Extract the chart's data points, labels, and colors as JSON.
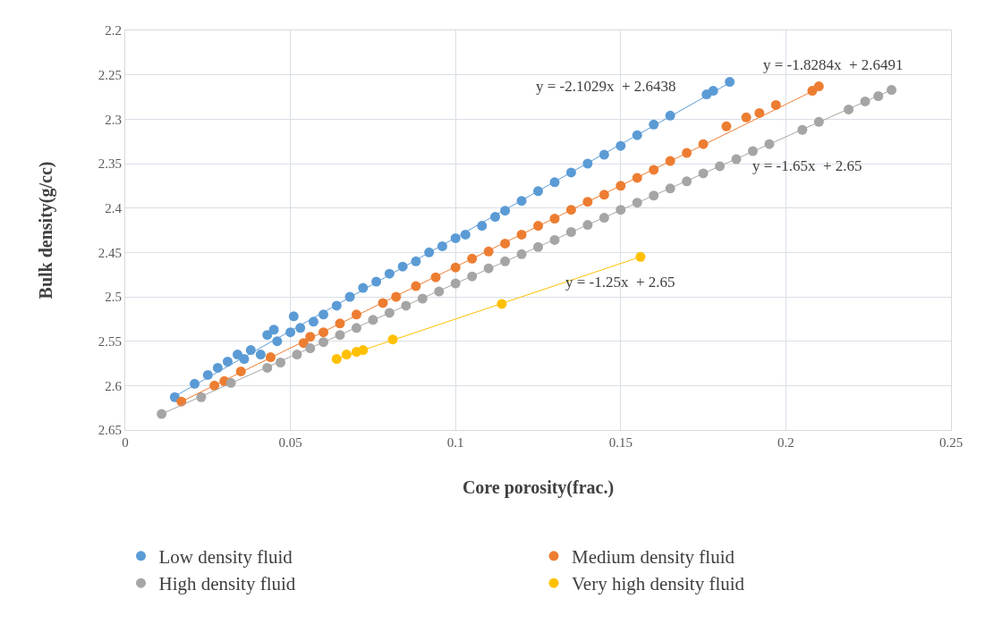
{
  "chart_data": {
    "type": "scatter",
    "xlabel": "Core porosity(frac.)",
    "ylabel": "Bulk density(g/cc)",
    "xlim": [
      0,
      0.25
    ],
    "xticks": [
      0,
      0.05,
      0.1,
      0.15,
      0.2,
      0.25
    ],
    "ylim": [
      2.65,
      2.2
    ],
    "yticks": [
      2.2,
      2.25,
      2.3,
      2.35,
      2.4,
      2.45,
      2.5,
      2.55,
      2.6,
      2.65
    ],
    "grid": true,
    "legend": "bottom",
    "series": [
      {
        "name": "Low density fluid",
        "marker": "circle",
        "color": "#5b9bd5",
        "x": [
          0.015,
          0.021,
          0.025,
          0.028,
          0.031,
          0.034,
          0.036,
          0.038,
          0.041,
          0.043,
          0.045,
          0.046,
          0.05,
          0.051,
          0.053,
          0.057,
          0.06,
          0.064,
          0.068,
          0.072,
          0.076,
          0.08,
          0.084,
          0.088,
          0.092,
          0.096,
          0.1,
          0.103,
          0.108,
          0.112,
          0.115,
          0.12,
          0.125,
          0.13,
          0.135,
          0.14,
          0.145,
          0.15,
          0.155,
          0.16,
          0.165,
          0.176,
          0.178,
          0.183
        ],
        "values": [
          2.613,
          2.598,
          2.588,
          2.58,
          2.573,
          2.565,
          2.57,
          2.56,
          2.565,
          2.543,
          2.537,
          2.55,
          2.54,
          2.522,
          2.535,
          2.528,
          2.52,
          2.51,
          2.5,
          2.49,
          2.483,
          2.474,
          2.466,
          2.46,
          2.45,
          2.443,
          2.434,
          2.43,
          2.42,
          2.41,
          2.403,
          2.392,
          2.381,
          2.371,
          2.36,
          2.35,
          2.34,
          2.33,
          2.318,
          2.306,
          2.296,
          2.272,
          2.268,
          2.258
        ]
      },
      {
        "name": "Medium density fluid",
        "marker": "circle",
        "color": "#ed7d31",
        "x": [
          0.017,
          0.027,
          0.03,
          0.035,
          0.044,
          0.054,
          0.056,
          0.06,
          0.065,
          0.07,
          0.078,
          0.082,
          0.088,
          0.094,
          0.1,
          0.105,
          0.11,
          0.115,
          0.12,
          0.125,
          0.13,
          0.135,
          0.14,
          0.145,
          0.15,
          0.155,
          0.16,
          0.165,
          0.17,
          0.175,
          0.182,
          0.188,
          0.192,
          0.197,
          0.208,
          0.21
        ],
        "values": [
          2.618,
          2.6,
          2.595,
          2.584,
          2.568,
          2.552,
          2.545,
          2.54,
          2.53,
          2.52,
          2.507,
          2.5,
          2.488,
          2.478,
          2.467,
          2.457,
          2.449,
          2.44,
          2.43,
          2.42,
          2.412,
          2.402,
          2.393,
          2.385,
          2.375,
          2.366,
          2.357,
          2.347,
          2.338,
          2.328,
          2.308,
          2.298,
          2.293,
          2.284,
          2.268,
          2.263
        ]
      },
      {
        "name": "High density fluid",
        "marker": "circle",
        "color": "#a5a5a5",
        "x": [
          0.011,
          0.023,
          0.032,
          0.043,
          0.047,
          0.052,
          0.056,
          0.06,
          0.065,
          0.07,
          0.075,
          0.08,
          0.085,
          0.09,
          0.095,
          0.1,
          0.105,
          0.11,
          0.115,
          0.12,
          0.125,
          0.13,
          0.135,
          0.14,
          0.145,
          0.15,
          0.155,
          0.16,
          0.165,
          0.17,
          0.175,
          0.18,
          0.185,
          0.19,
          0.195,
          0.205,
          0.21,
          0.219,
          0.224,
          0.228,
          0.232
        ],
        "values": [
          2.632,
          2.613,
          2.597,
          2.58,
          2.574,
          2.565,
          2.558,
          2.551,
          2.543,
          2.535,
          2.526,
          2.518,
          2.51,
          2.502,
          2.494,
          2.485,
          2.477,
          2.468,
          2.46,
          2.452,
          2.444,
          2.436,
          2.427,
          2.419,
          2.411,
          2.402,
          2.394,
          2.386,
          2.378,
          2.37,
          2.361,
          2.353,
          2.345,
          2.336,
          2.328,
          2.312,
          2.303,
          2.289,
          2.28,
          2.274,
          2.267
        ]
      },
      {
        "name": "Very high density fluid",
        "marker": "circle",
        "color": "#ffc000",
        "x": [
          0.064,
          0.067,
          0.07,
          0.072,
          0.081,
          0.114,
          0.156
        ],
        "values": [
          2.57,
          2.565,
          2.562,
          2.56,
          2.548,
          2.508,
          2.455
        ]
      },
      {
        "type": "line",
        "color": "#5b9bd5",
        "x": [
          0.015,
          0.183
        ],
        "values": [
          2.612,
          2.259
        ]
      },
      {
        "type": "line",
        "color": "#ed7d31",
        "x": [
          0.017,
          0.21
        ],
        "values": [
          2.618,
          2.265
        ]
      },
      {
        "type": "line",
        "color": "#a5a5a5",
        "x": [
          0.011,
          0.232
        ],
        "values": [
          2.632,
          2.267
        ]
      },
      {
        "type": "line",
        "color": "#ffc000",
        "x": [
          0.064,
          0.156
        ],
        "values": [
          2.57,
          2.455
        ]
      }
    ],
    "annotations": [
      "y = -2.1029x  + 2.6438",
      "y = -1.8284x  + 2.6491",
      "y = -1.65x  + 2.65",
      "y = -1.25x  + 2.65"
    ]
  }
}
